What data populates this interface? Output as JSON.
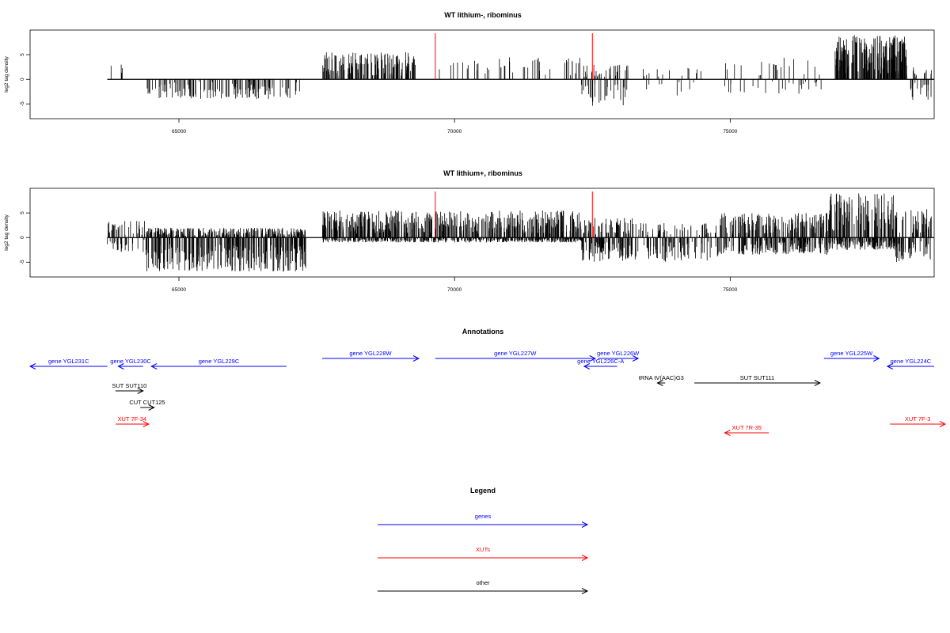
{
  "chart_data": [
    {
      "type": "bar",
      "title": "WT lithium-, ribominus",
      "ylabel": "log2 tag density",
      "xlim": [
        62300,
        78700
      ],
      "ylim": [
        -8,
        10
      ],
      "x_ticks": [
        "65000",
        "70000",
        "75000"
      ],
      "y_ticks": [
        "-5",
        "0",
        "5"
      ],
      "baseline": [
        63700,
        78700
      ],
      "marker_lines_x": [
        69650,
        72500
      ],
      "marker_color": "#ff0000",
      "series": [
        {
          "segments": [
            {
              "x0": 63700,
              "x1": 64100,
              "density": 0.15,
              "min": 0,
              "max": 3.0
            },
            {
              "x0": 64400,
              "x1": 67200,
              "density": 0.7,
              "min": -4.0,
              "max": 0
            },
            {
              "x0": 67600,
              "x1": 69300,
              "density": 1.2,
              "min": 0,
              "max": 5.5
            },
            {
              "x0": 69700,
              "x1": 72300,
              "density": 0.25,
              "min": 0,
              "max": 4.5
            },
            {
              "x0": 72300,
              "x1": 73200,
              "density": 1.0,
              "min": -5.5,
              "max": 3.0
            },
            {
              "x0": 73400,
              "x1": 74500,
              "density": 0.3,
              "min": -3.5,
              "max": 2.5
            },
            {
              "x0": 74800,
              "x1": 76700,
              "density": 0.35,
              "min": -3.0,
              "max": 4.5
            },
            {
              "x0": 76900,
              "x1": 78200,
              "density": 2.2,
              "min": 0,
              "max": 9.0
            },
            {
              "x0": 78200,
              "x1": 78650,
              "density": 1.0,
              "min": -4.5,
              "max": 2.5
            }
          ]
        }
      ]
    },
    {
      "type": "bar",
      "title": "WT lithium+, ribominus",
      "ylabel": "log2 tag density",
      "xlim": [
        62300,
        78700
      ],
      "ylim": [
        -8,
        10
      ],
      "x_ticks": [
        "65000",
        "70000",
        "75000"
      ],
      "y_ticks": [
        "-5",
        "0",
        "5"
      ],
      "baseline": [
        63700,
        78700
      ],
      "marker_lines_x": [
        69650,
        72500
      ],
      "marker_color": "#ff0000",
      "series": [
        {
          "segments": [
            {
              "x0": 63700,
              "x1": 64400,
              "density": 1.2,
              "min": -3.0,
              "max": 3.5
            },
            {
              "x0": 64400,
              "x1": 67300,
              "density": 2.8,
              "min": -7.0,
              "max": 2.0
            },
            {
              "x0": 67600,
              "x1": 72300,
              "density": 3.0,
              "min": -1.0,
              "max": 5.5
            },
            {
              "x0": 72300,
              "x1": 73300,
              "density": 2.2,
              "min": -5.0,
              "max": 4.0
            },
            {
              "x0": 73300,
              "x1": 74800,
              "density": 1.2,
              "min": -5.0,
              "max": 3.0
            },
            {
              "x0": 74800,
              "x1": 76800,
              "density": 2.5,
              "min": -3.5,
              "max": 5.0
            },
            {
              "x0": 76800,
              "x1": 78000,
              "density": 3.0,
              "min": -2.5,
              "max": 9.0
            },
            {
              "x0": 78000,
              "x1": 78650,
              "density": 2.0,
              "min": -5.0,
              "max": 6.0
            }
          ]
        }
      ]
    }
  ],
  "annotations": {
    "title": "Annotations",
    "genes": [
      {
        "label": "gene YGL231C",
        "x_from": 63700,
        "x_to": 62300,
        "row": 1
      },
      {
        "label": "gene YGL230C",
        "x_from": 64350,
        "x_to": 63900,
        "row": 1
      },
      {
        "label": "gene YGL229C",
        "x_from": 66950,
        "x_to": 64500,
        "row": 1
      },
      {
        "label": "gene YGL228W",
        "x_from": 67600,
        "x_to": 69350,
        "row": 0
      },
      {
        "label": "gene YGL227W",
        "x_from": 69650,
        "x_to": 72550,
        "row": 0
      },
      {
        "label": "gene YGL226W",
        "x_from": 72600,
        "x_to": 73330,
        "row": 0
      },
      {
        "label": "gene YGL226C-A",
        "x_from": 72950,
        "x_to": 72350,
        "row": 1
      },
      {
        "label": "gene YGL225W",
        "x_from": 76700,
        "x_to": 77700,
        "row": 0
      },
      {
        "label": "gene YGL224C",
        "x_from": 78700,
        "x_to": 77850,
        "row": 1
      }
    ],
    "xuts": [
      {
        "label": "XUT 7F-34",
        "x_from": 63850,
        "x_to": 64450,
        "row": 2
      },
      {
        "label": "XUT 7R-35",
        "x_from": 75700,
        "x_to": 74900,
        "row": 3
      },
      {
        "label": "XUT 7F-3",
        "x_from": 77900,
        "x_to": 78900,
        "row": 2
      }
    ],
    "other": [
      {
        "label": "SUT SUT110",
        "x_from": 63850,
        "x_to": 64350,
        "row": 4
      },
      {
        "label": "CUT CUT125",
        "x_from": 64300,
        "x_to": 64550,
        "row": 5
      },
      {
        "label": "tRNA tV(AAC)G3",
        "x_from": 73820,
        "x_to": 73680,
        "row": 6
      },
      {
        "label": "SUT SUT111",
        "x_from": 74350,
        "x_to": 76630,
        "row": 6
      }
    ]
  },
  "legend": {
    "title": "Legend",
    "items": [
      {
        "label": "genes",
        "color": "#0000ff"
      },
      {
        "label": "XUTs",
        "color": "#ff0000"
      },
      {
        "label": "other",
        "color": "#000000"
      }
    ]
  },
  "colors": {
    "gene": "#0000ff",
    "xut": "#ff0000",
    "other": "#000000",
    "track": "#000000"
  }
}
